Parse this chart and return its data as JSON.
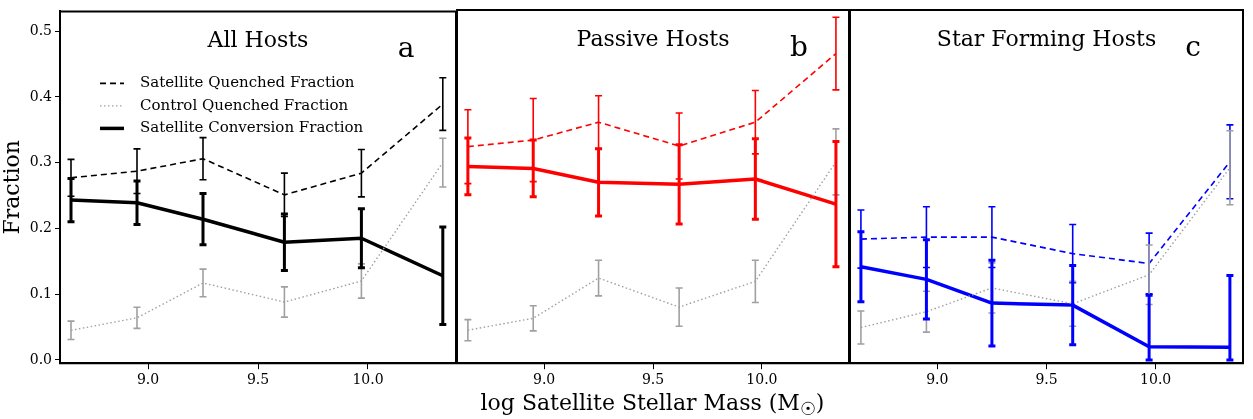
{
  "chart_data": [
    {
      "type": "line",
      "title": "All Hosts",
      "ylabel": "Fraction",
      "annotations": [
        "a"
      ],
      "xlim": [
        8.6,
        10.4
      ],
      "xticks": [
        {
          "value": 9.0,
          "label": "9.0"
        },
        {
          "value": 9.5,
          "label": "9.5"
        },
        {
          "value": 10.0,
          "label": "10.0"
        }
      ],
      "ylim": [
        -0.005,
        0.53
      ],
      "yticks": [
        {
          "value": 0,
          "label": "0.0"
        },
        0.1,
        0.2,
        0.3,
        0.4,
        0.5
      ],
      "legend": "top left",
      "grid": false,
      "x": [
        8.65,
        8.95,
        9.25,
        9.62,
        9.97,
        10.34
      ],
      "series": [
        {
          "name": "Satellite Quenched Fraction",
          "color": "#000000",
          "line_style": "dashed",
          "values": [
            0.277,
            0.287,
            0.306,
            0.251,
            0.284,
            0.389
          ],
          "errors": [
            0.028,
            0.034,
            0.032,
            0.033,
            0.036,
            0.04
          ]
        },
        {
          "name": "Control Quenched Fraction",
          "color": "#a0a0a0",
          "line_style": "dotted",
          "values": [
            0.045,
            0.064,
            0.117,
            0.088,
            0.12,
            0.3
          ],
          "errors": [
            0.014,
            0.016,
            0.021,
            0.023,
            0.026,
            0.037
          ]
        },
        {
          "name": "Satellite Conversion Fraction",
          "color": "#000000",
          "line_style": "solid",
          "values": [
            0.243,
            0.239,
            0.214,
            0.179,
            0.185,
            0.128
          ],
          "errors": [
            0.033,
            0.033,
            0.039,
            0.043,
            0.045,
            0.074
          ]
        }
      ]
    },
    {
      "type": "line",
      "title": "Passive Hosts",
      "xlabel": "log Satellite Stellar Mass (M$_{☉}$)",
      "annotations": [
        "b"
      ],
      "xlim": [
        8.6,
        10.4
      ],
      "xticks": [
        {
          "value": 9.0,
          "label": "9.0"
        },
        {
          "value": 9.5,
          "label": "9.5"
        },
        {
          "value": 10.0,
          "label": "10.0"
        }
      ],
      "ylim": [
        -0.005,
        0.53
      ],
      "yticks": [
        0,
        0.1,
        0.2,
        0.3,
        0.4,
        0.5
      ],
      "tick_labels": "x",
      "grid": false,
      "x": [
        8.65,
        8.95,
        9.25,
        9.62,
        9.97,
        10.34
      ],
      "series": [
        {
          "color": "#ff0000",
          "line_style": "dashed",
          "values": [
            0.323,
            0.333,
            0.36,
            0.324,
            0.36,
            0.464
          ],
          "errors": [
            0.056,
            0.063,
            0.04,
            0.05,
            0.048,
            0.055
          ]
        },
        {
          "color": "#a0a0a0",
          "line_style": "dotted",
          "values": [
            0.045,
            0.063,
            0.124,
            0.08,
            0.119,
            0.3
          ],
          "errors": [
            0.016,
            0.019,
            0.027,
            0.029,
            0.032,
            0.05
          ]
        },
        {
          "color": "#ff0000",
          "line_style": "solid",
          "values": [
            0.293,
            0.29,
            0.269,
            0.266,
            0.274,
            0.236
          ],
          "errors": [
            0.043,
            0.043,
            0.051,
            0.06,
            0.061,
            0.095
          ]
        }
      ]
    },
    {
      "type": "line",
      "title": "Star Forming Hosts",
      "annotations": [
        "c"
      ],
      "xlim": [
        8.6,
        10.4
      ],
      "xticks": [
        {
          "value": 9.0,
          "label": "9.0"
        },
        {
          "value": 9.5,
          "label": "9.5"
        },
        {
          "value": 10.0,
          "label": "10.0"
        }
      ],
      "ylim": [
        -0.005,
        0.53
      ],
      "yticks": [
        0,
        0.1,
        0.2,
        0.3,
        0.4,
        0.5
      ],
      "tick_labels": "x",
      "grid": false,
      "x": [
        8.65,
        8.95,
        9.25,
        9.62,
        9.97,
        10.34
      ],
      "series": [
        {
          "color": "#0000ff",
          "line_style": "dashed",
          "values": [
            0.183,
            0.186,
            0.186,
            0.161,
            0.146,
            0.3
          ],
          "errors": [
            0.044,
            0.046,
            0.046,
            0.044,
            0.046,
            0.056
          ]
        },
        {
          "color": "#a0a0a0",
          "line_style": "dotted",
          "values": [
            0.049,
            0.073,
            0.109,
            0.085,
            0.129,
            0.291
          ],
          "errors": [
            0.025,
            0.031,
            0.038,
            0.034,
            0.045,
            0.056
          ]
        },
        {
          "color": "#0000ff",
          "line_style": "solid",
          "values": [
            0.141,
            0.122,
            0.086,
            0.083,
            0.02,
            0.019
          ],
          "errors": [
            0.053,
            0.06,
            0.065,
            0.06,
            [
              0,
              0.098
            ],
            [
              0,
              0.128
            ]
          ]
        }
      ]
    }
  ]
}
